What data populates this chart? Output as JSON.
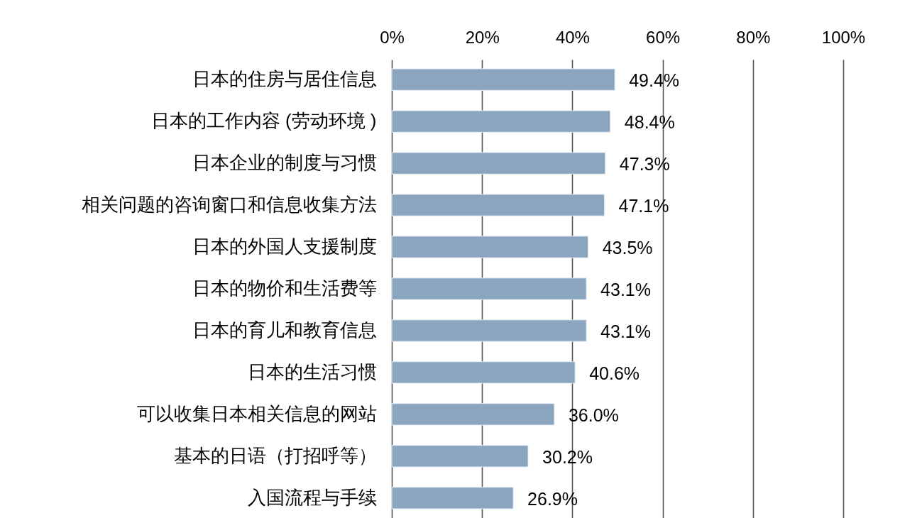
{
  "chart_data": {
    "type": "bar",
    "orientation": "horizontal",
    "categories": [
      "日本的住房与居住信息",
      "日本的工作内容 (劳动环境 )",
      "日本企业的制度与习惯",
      "相关问题的咨询窗口和信息收集方法",
      "日本的外国人支援制度",
      "日本的物价和生活费等",
      "日本的育儿和教育信息",
      "日本的生活习惯",
      "可以收集日本相关信息的网站",
      "基本的日语（打招呼等）",
      "入国流程与手续"
    ],
    "values": [
      49.4,
      48.4,
      47.3,
      47.1,
      43.5,
      43.1,
      43.1,
      40.6,
      36.0,
      30.2,
      26.9
    ],
    "value_labels": [
      "49.4%",
      "48.4%",
      "47.3%",
      "47.1%",
      "43.5%",
      "43.1%",
      "43.1%",
      "40.6%",
      "36.0%",
      "30.2%",
      "26.9%"
    ],
    "color": "#8ba5bf",
    "xlim": [
      0,
      100
    ],
    "xticks": [
      {
        "value": 0,
        "label": "0%"
      },
      {
        "value": 20,
        "label": "20%"
      },
      {
        "value": 40,
        "label": "40%"
      },
      {
        "value": 60,
        "label": "60%"
      },
      {
        "value": 80,
        "label": "80%"
      },
      {
        "value": 100,
        "label": "100%"
      }
    ],
    "grid": "x"
  }
}
